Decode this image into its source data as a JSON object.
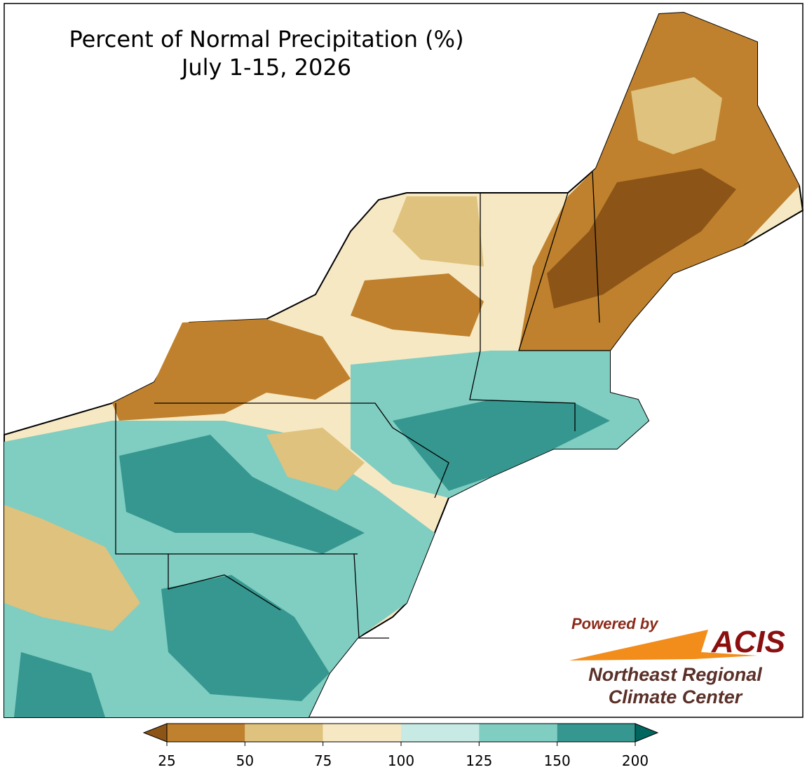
{
  "title": "Percent of Normal Precipitation (%)",
  "subtitle": "July 1-15, 2026",
  "legend": {
    "ticks": [
      25,
      50,
      75,
      100,
      125,
      150,
      200
    ],
    "colors": [
      "#bf812d",
      "#dfc27d",
      "#f6e8c3",
      "#c7eae5",
      "#80cdc1",
      "#35978f"
    ],
    "under_color": "#8c5416",
    "over_color": "#01665e"
  },
  "logo": {
    "powered_by": "Powered by",
    "name": "ACIS",
    "org_line1": "Northeast Regional",
    "org_line2": "Climate Center"
  }
}
